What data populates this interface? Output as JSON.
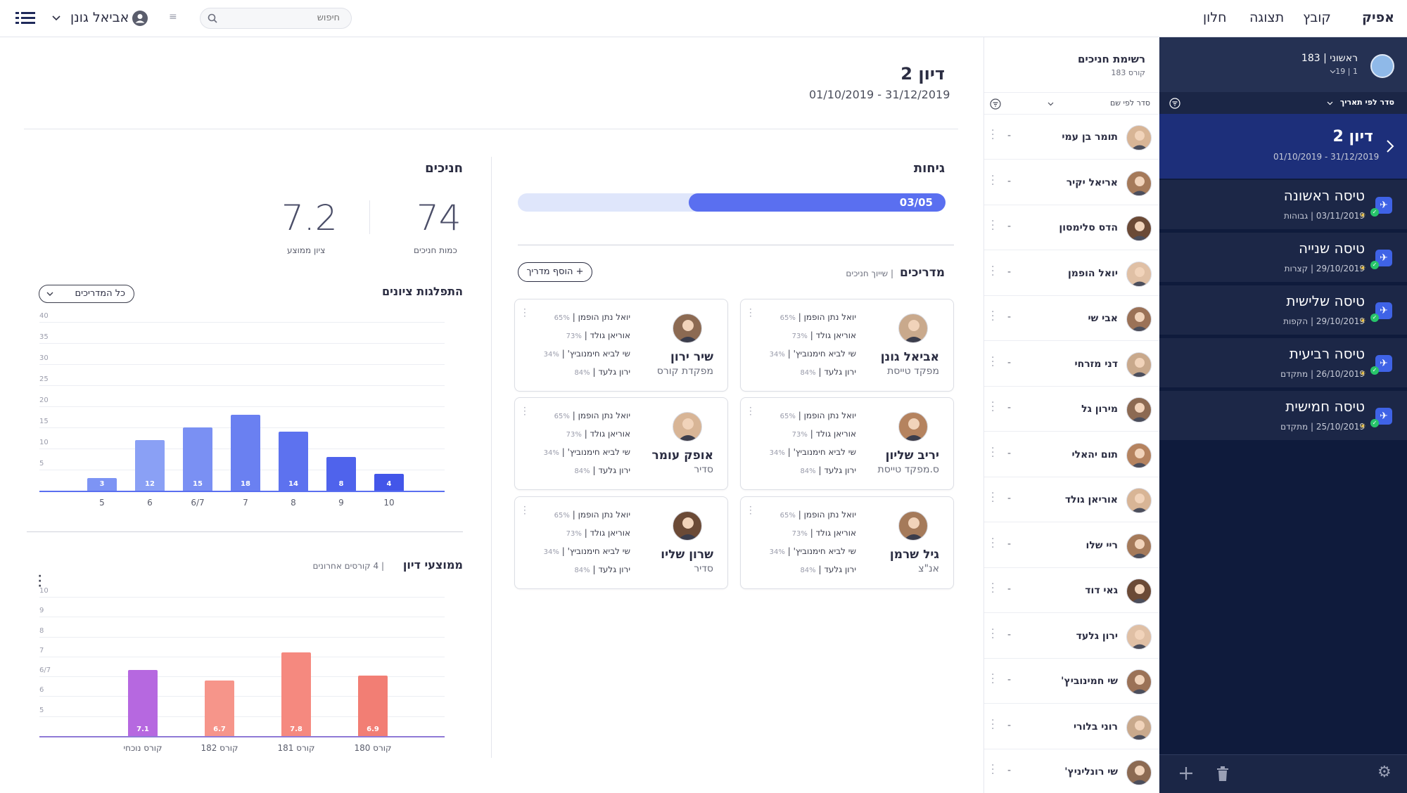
{
  "topbar": {
    "menu": [
      "אפיק",
      "קובץ",
      "תצוגה",
      "חלון"
    ],
    "search_placeholder": "חיפוש",
    "user_name": "אביאל גונן"
  },
  "leftnav": {
    "course_title": "ראשוני | 183",
    "course_sub": "1 | 19",
    "sort_label": "סדר לפי תאריך",
    "selected": {
      "title": "דיון 2",
      "date": "01/10/2019 - 31/12/2019"
    },
    "flights": [
      {
        "title": "טיסה ראשונה",
        "date": "03/11/2019",
        "tag": "גבוהות"
      },
      {
        "title": "טיסה שנייה",
        "date": "29/10/2019",
        "tag": "קצרות"
      },
      {
        "title": "טיסה שלישית",
        "date": "29/10/2019",
        "tag": "הקפות"
      },
      {
        "title": "טיסה רביעית",
        "date": "26/10/2019",
        "tag": "מתקדם"
      },
      {
        "title": "טיסה חמישית",
        "date": "25/10/2019",
        "tag": "מתקדם"
      }
    ]
  },
  "trainees": {
    "title": "רשימת חניכים",
    "subtitle": "קורס 183",
    "sort_label": "סדר לפי שם",
    "dash": "-",
    "items": [
      "תומר בן עמי",
      "אריאל יקיר",
      "הדס סלימסון",
      "יואל הופמן",
      "אבי שי",
      "דני מזרחי",
      "מירון גל",
      "תום יהאלי",
      "אוריאן גולד",
      "ריי שלו",
      "גאי דוד",
      "ירון גלעד",
      "שי חמינוביץ'",
      "רוני בלורי",
      "שי רונליניץ'"
    ]
  },
  "main": {
    "title": "דיון 2",
    "dates": "01/10/2019 - 31/12/2019",
    "sorties": {
      "title": "גיחות",
      "progress_label": "03/05",
      "progress": 0.6
    },
    "instructors": {
      "title": "מדריכים",
      "sub": "| שייוך חניכים",
      "add_label": "+ הוסף מדריך",
      "lines": [
        {
          "name": "יואל נתן הופמן |",
          "pct": "65%"
        },
        {
          "name": "אוריאן גולד |",
          "pct": "73%"
        },
        {
          "name": "שי לביא חימנוביץ' |",
          "pct": "34%"
        },
        {
          "name": "ירון גלעד |",
          "pct": "84%"
        }
      ],
      "cards": [
        {
          "name": "אביאל גונן",
          "role": "מפקד טייסת"
        },
        {
          "name": "שיר ירון",
          "role": "מפקדת קורס"
        },
        {
          "name": "יריב שליון",
          "role": "ס.מפקד טייסת"
        },
        {
          "name": "אופק עומר",
          "role": "סדיר"
        },
        {
          "name": "גיל שרמן",
          "role": "אנ\"צ"
        },
        {
          "name": "שרון שליו",
          "role": "סדיר"
        }
      ]
    },
    "trainees_panel": {
      "title": "חניכים",
      "count": "74",
      "count_label": "כמות חניכים",
      "avg": "7.2",
      "avg_label": "ציון ממוצע"
    },
    "grades_chart": {
      "title": "התפלגות ציונים",
      "filter": "כל המדריכים"
    },
    "avg_chart": {
      "title": "ממוצעי דיון",
      "sub": "| 4 קורסים אחרונים"
    }
  },
  "chart_data": [
    {
      "type": "bar",
      "title": "התפלגות ציונים",
      "categories": [
        "5",
        "6",
        "6/7",
        "7",
        "8",
        "9",
        "10"
      ],
      "values": [
        3,
        12,
        15,
        18,
        14,
        8,
        4
      ],
      "yticks": [
        "5",
        "10",
        "15",
        "20",
        "25",
        "30",
        "35",
        "40"
      ],
      "ylim": [
        0,
        40
      ]
    },
    {
      "type": "bar",
      "title": "ממוצעי דיון",
      "categories": [
        "קורס נוכחי",
        "קורס 182",
        "קורס 181",
        "קורס 180"
      ],
      "values": [
        7.1,
        6.7,
        7.8,
        6.9
      ],
      "yticks": [
        "5",
        "6",
        "6/7",
        "7",
        "8",
        "9",
        "10"
      ],
      "ylim": [
        4.5,
        10
      ]
    }
  ],
  "colors": {
    "accent": "#5a6ff0",
    "nav": "#0f1b3c",
    "selected": "#1d2f7a"
  }
}
